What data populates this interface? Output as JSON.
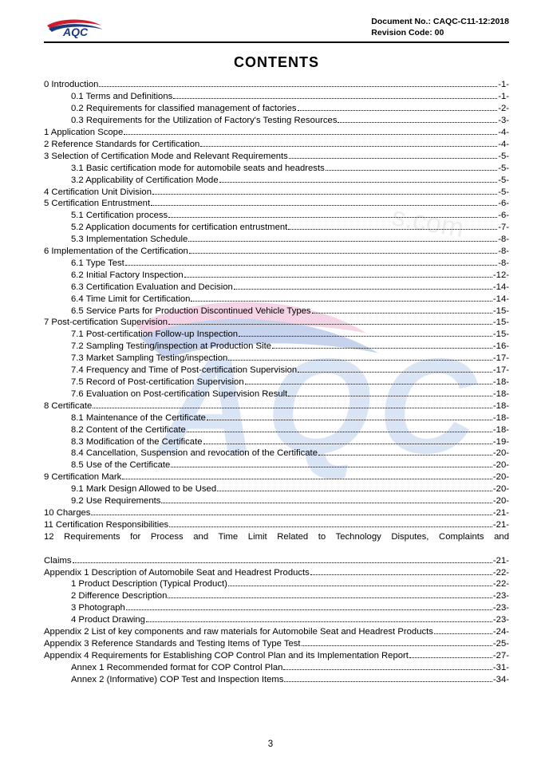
{
  "header": {
    "logoText": "AQC",
    "docNo": "Document No.: CAQC-C11-12:2018",
    "revision": "Revision Code: 00"
  },
  "title": "CONTENTS",
  "pageNumber": "3",
  "watermark": {
    "text": "AQC",
    "url_hint": "s.com"
  },
  "style": {
    "accent_pink": "#d94b9a",
    "accent_blue": "#2a4b9b",
    "logo_red": "#d01c2a",
    "logo_blue": "#1b3a7c",
    "wm_letter": "#7aa6dc",
    "wm_swoosh_pink": "#e169b0",
    "wm_swoosh_blue": "#3a66c2"
  },
  "toc": [
    {
      "level": 1,
      "label": "0 Introduction",
      "page": "-1-"
    },
    {
      "level": 2,
      "label": "0.1 Terms and Definitions",
      "page": "-1-"
    },
    {
      "level": 2,
      "label": "0.2 Requirements for classified management of factories",
      "page": "-2-"
    },
    {
      "level": 2,
      "label": "0.3 Requirements for the Utilization of Factory's Testing Resources",
      "page": "-3-"
    },
    {
      "level": 1,
      "label": "1 Application Scope",
      "page": "-4-"
    },
    {
      "level": 1,
      "label": "2 Reference Standards for Certification",
      "page": "-4-"
    },
    {
      "level": 1,
      "label": "3 Selection of Certification Mode and Relevant Requirements",
      "page": "-5-"
    },
    {
      "level": 2,
      "label": "3.1 Basic certification mode for automobile seats and headrests",
      "page": "-5-"
    },
    {
      "level": 2,
      "label": "3.2 Applicability of Certification Mode",
      "page": "-5-"
    },
    {
      "level": 1,
      "label": "4 Certification Unit Division",
      "page": "-5-"
    },
    {
      "level": 1,
      "label": "5 Certification Entrustment",
      "page": "-6-"
    },
    {
      "level": 2,
      "label": "5.1 Certification process",
      "page": "-6-"
    },
    {
      "level": 2,
      "label": "5.2 Application documents for certification entrustment",
      "page": "-7-"
    },
    {
      "level": 2,
      "label": "5.3 Implementation Schedule",
      "page": "-8-"
    },
    {
      "level": 1,
      "label": "6 Implementation of the Certification",
      "page": "-8-"
    },
    {
      "level": 2,
      "label": "6.1 Type Test",
      "page": "-8-"
    },
    {
      "level": 2,
      "label": "6.2 Initial Factory Inspection",
      "page": "-12-"
    },
    {
      "level": 2,
      "label": "6.3 Certification Evaluation and Decision",
      "page": "-14-"
    },
    {
      "level": 2,
      "label": "6.4 Time Limit for Certification",
      "page": "-14-"
    },
    {
      "level": 2,
      "label": "6.5 Service Parts for Production Discontinued Vehicle Types",
      "page": "-15-"
    },
    {
      "level": 1,
      "label": "7 Post-certification Supervision",
      "page": "-15-"
    },
    {
      "level": 2,
      "label": "7.1 Post-certification Follow-up Inspection",
      "page": "-15-"
    },
    {
      "level": 2,
      "label": "7.2 Sampling Testing/inspection at Production Site",
      "page": "-16-"
    },
    {
      "level": 2,
      "label": "7.3 Market Sampling Testing/inspection",
      "page": "-17-"
    },
    {
      "level": 2,
      "label": "7.4 Frequency and Time of Post-certification Supervision",
      "page": "-17-"
    },
    {
      "level": 2,
      "label": "7.5 Record of Post-certification Supervision",
      "page": "-18-"
    },
    {
      "level": 2,
      "label": "7.6 Evaluation on Post-certification Supervision Result",
      "page": "-18-"
    },
    {
      "level": 1,
      "label": "8 Certificate",
      "page": "-18-"
    },
    {
      "level": 2,
      "label": "8.1 Maintenance of the Certificate",
      "page": "-18-"
    },
    {
      "level": 2,
      "label": "8.2 Content of the Certificate",
      "page": "-18-"
    },
    {
      "level": 2,
      "label": "8.3 Modification of the Certificate",
      "page": "-19-"
    },
    {
      "level": 2,
      "label": "8.4 Cancellation, Suspension and revocation of the Certificate",
      "page": "-20-"
    },
    {
      "level": 2,
      "label": "8.5 Use of the Certificate",
      "page": "-20-"
    },
    {
      "level": 1,
      "label": "9 Certification Mark",
      "page": "-20-"
    },
    {
      "level": 2,
      "label": "9.1 Mark Design Allowed to be Used",
      "page": "-20-"
    },
    {
      "level": 2,
      "label": "9.2 Use Requirements",
      "page": "-20-"
    },
    {
      "level": 1,
      "label": "10 Charges",
      "page": "-21-"
    },
    {
      "level": 1,
      "label": "11 Certification Responsibilities",
      "page": "-21-"
    },
    {
      "level": 1,
      "label": "12 Requirements for Process and Time Limit Related to Technology Disputes, Complaints and Claims",
      "page": "-21-",
      "justify": true
    },
    {
      "level": 1,
      "label": "Appendix 1 Description of Automobile Seat and Headrest Products",
      "page": "-22-"
    },
    {
      "level": 2,
      "label": "1 Product Description (Typical Product)",
      "page": "-22-"
    },
    {
      "level": 2,
      "label": "2 Difference Description",
      "page": "-23-"
    },
    {
      "level": 2,
      "label": "3 Photograph",
      "page": "-23-"
    },
    {
      "level": 2,
      "label": "4 Product Drawing",
      "page": "-23-"
    },
    {
      "level": 1,
      "label": "Appendix 2 List of key components and raw materials for Automobile Seat and Headrest Products",
      "page": "-24-"
    },
    {
      "level": 1,
      "label": "Appendix 3 Reference Standards and Testing Items of Type Test",
      "page": "-25-"
    },
    {
      "level": 1,
      "label": "Appendix 4 Requirements for Establishing COP Control Plan and its Implementation Report",
      "page": "-27-"
    },
    {
      "level": 2,
      "label": "Annex 1 Recommended format for COP Control Plan",
      "page": "-31-"
    },
    {
      "level": 2,
      "label": "Annex 2 (Informative) COP Test and Inspection Items",
      "page": "-34-"
    }
  ]
}
